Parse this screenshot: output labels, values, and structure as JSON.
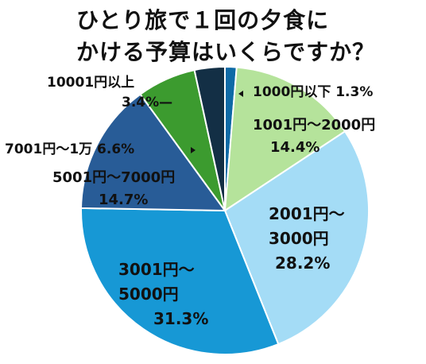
{
  "title_lines": [
    "ひとり旅で１回の夕食に",
    "かける予算はいくらですか？"
  ],
  "chart_data": {
    "type": "pie",
    "title": "ひとり旅で１回の夕食にかける予算はいくらですか？",
    "start": "12 o'clock, clockwise",
    "slices": [
      {
        "label_lines": [
          "1000円以下 1.3%"
        ],
        "category": "1000円以下",
        "value": 1.3,
        "color": "#0e6aa6"
      },
      {
        "label_lines": [
          "1001円～2000円",
          "14.4%"
        ],
        "category": "1001円～2000円",
        "value": 14.4,
        "color": "#b5e39b"
      },
      {
        "label_lines": [
          "2001円～",
          "3000円",
          "28.2%"
        ],
        "category": "2001円～3000円",
        "value": 28.2,
        "color": "#a4dcf6"
      },
      {
        "label_lines": [
          "3001円～",
          "5000円",
          "31.3%"
        ],
        "category": "3001円～5000円",
        "value": 31.3,
        "color": "#1798d5"
      },
      {
        "label_lines": [
          "5001円～7000円",
          "14.7%"
        ],
        "category": "5001円～7000円",
        "value": 14.7,
        "color": "#285c97"
      },
      {
        "label_lines": [
          "7001円～1万 6.6%"
        ],
        "category": "7001円～1万",
        "value": 6.6,
        "color": "#3c9b2f"
      },
      {
        "label_lines": [
          "10001円以上",
          "3.4%—"
        ],
        "category": "10001円以上",
        "value": 3.4,
        "color": "#132f45"
      }
    ]
  }
}
